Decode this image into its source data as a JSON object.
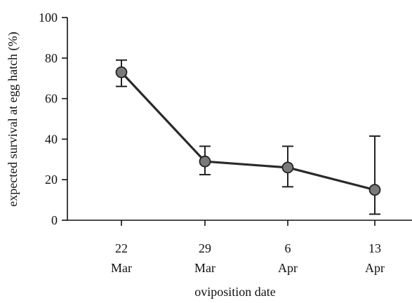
{
  "chart_data": {
    "type": "line",
    "xlabel": "oviposition date",
    "ylabel": "expected survival at egg hatch (%)",
    "ylim": [
      0,
      100
    ],
    "yticks": [
      0,
      20,
      40,
      60,
      80,
      100
    ],
    "categories": [
      {
        "day": "22",
        "month": "Mar"
      },
      {
        "day": "29",
        "month": "Mar"
      },
      {
        "day": "6",
        "month": "Apr"
      },
      {
        "day": "13",
        "month": "Apr"
      }
    ],
    "series": [
      {
        "values": [
          73,
          29,
          26,
          15
        ],
        "error_lower": [
          66,
          22.5,
          16.5,
          3
        ],
        "error_upper": [
          79,
          36.5,
          36.5,
          41.5
        ]
      }
    ],
    "grid": false,
    "legend": "none"
  }
}
